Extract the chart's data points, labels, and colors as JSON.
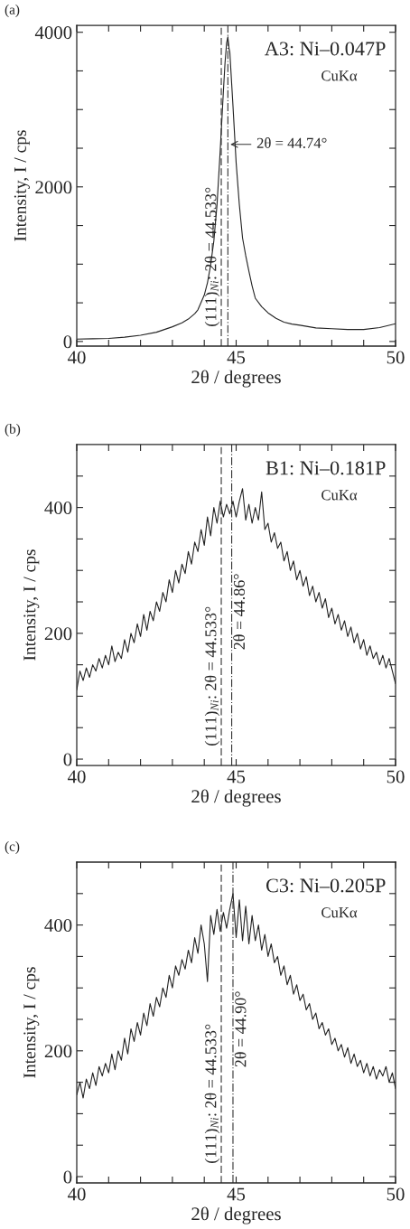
{
  "chart_data": [
    {
      "type": "line",
      "title": "(a)",
      "subtitle": "A3: Ni–0.047P",
      "annotations": [
        "CuKα",
        {
          "text": "2θ = 44.74°",
          "x": 44.74,
          "y": 2550
        }
      ],
      "xlabel": "2θ / degrees",
      "ylabel": "Intensity, I / cps",
      "xlim": [
        40,
        50
      ],
      "ylim": [
        -60,
        4090
      ],
      "xticks": [
        40,
        {
          "value": 41,
          "label": null
        },
        {
          "value": 42,
          "label": null
        },
        {
          "value": 43,
          "label": null
        },
        {
          "value": 44,
          "label": null
        },
        45,
        {
          "value": 46,
          "label": null
        },
        {
          "value": 47,
          "label": null
        },
        {
          "value": 48,
          "label": null
        },
        {
          "value": 49,
          "label": null
        },
        50
      ],
      "yticks": [
        0,
        {
          "value": 500,
          "label": null
        },
        {
          "value": 1000,
          "label": null
        },
        {
          "value": 1500,
          "label": null
        },
        2000,
        {
          "value": 2500,
          "label": null
        },
        {
          "value": 3000,
          "label": null
        },
        {
          "value": 3500,
          "label": null
        },
        4000
      ],
      "ref_lines": [
        {
          "axis": "x",
          "value": 44.533,
          "label": "(111)$_{Ni}$: 2θ = 44.533°",
          "line_style": "dashed"
        },
        {
          "axis": "x",
          "value": 44.74,
          "line_style": "dashdot"
        }
      ],
      "series": [
        {
          "color": "#222222",
          "x": [
            40,
            40.5,
            41,
            41.5,
            42,
            42.5,
            43,
            43.3,
            43.5,
            43.7,
            43.8,
            44,
            44.1,
            44.2,
            44.3,
            44.4,
            44.5,
            44.6,
            44.65,
            44.7,
            44.74,
            44.78,
            44.8,
            44.9,
            45,
            45.1,
            45.2,
            45.3,
            45.4,
            45.5,
            45.6,
            45.8,
            46,
            46.25,
            46.5,
            46.75,
            47,
            47.5,
            48,
            48.5,
            49,
            49.5,
            50
          ],
          "values": [
            30,
            35,
            40,
            55,
            80,
            120,
            190,
            240,
            290,
            360,
            410,
            600,
            760,
            990,
            1300,
            1770,
            2470,
            3240,
            3600,
            3860,
            3940,
            3780,
            3750,
            3050,
            2310,
            1770,
            1340,
            1110,
            910,
            720,
            560,
            450,
            370,
            300,
            250,
            225,
            210,
            175,
            165,
            155,
            155,
            180,
            230
          ]
        }
      ]
    },
    {
      "type": "line",
      "title": "(b)",
      "subtitle": "B1: Ni–0.181P",
      "annotations": [
        "CuKα"
      ],
      "xlabel": "2θ / degrees",
      "ylabel": "Intensity, I / cps",
      "xlim": [
        40,
        50
      ],
      "ylim": [
        -10,
        500
      ],
      "xticks": [
        40,
        {
          "value": 41,
          "label": null
        },
        {
          "value": 42,
          "label": null
        },
        {
          "value": 43,
          "label": null
        },
        {
          "value": 44,
          "label": null
        },
        45,
        {
          "value": 46,
          "label": null
        },
        {
          "value": 47,
          "label": null
        },
        {
          "value": 48,
          "label": null
        },
        {
          "value": 49,
          "label": null
        },
        50
      ],
      "yticks": [
        0,
        {
          "value": 50,
          "label": null
        },
        {
          "value": 100,
          "label": null
        },
        {
          "value": 150,
          "label": null
        },
        200,
        {
          "value": 250,
          "label": null
        },
        {
          "value": 300,
          "label": null
        },
        {
          "value": 350,
          "label": null
        },
        400,
        {
          "value": 450,
          "label": null
        }
      ],
      "ref_lines": [
        {
          "axis": "x",
          "value": 44.533,
          "label": "(111)$_{Ni}$: 2θ = 44.533°",
          "line_style": "dashed"
        },
        {
          "axis": "x",
          "value": 44.86,
          "label": "2θ = 44.86°",
          "line_style": "dashdot"
        }
      ],
      "series": [
        {
          "color": "#222222",
          "x": [
            40.0,
            40.1,
            40.2,
            40.3,
            40.4,
            40.5,
            40.6,
            40.7,
            40.8,
            40.9,
            41.0,
            41.1,
            41.2,
            41.3,
            41.4,
            41.5,
            41.6,
            41.7,
            41.8,
            41.9,
            42.0,
            42.1,
            42.2,
            42.3,
            42.4,
            42.5,
            42.6,
            42.7,
            42.8,
            42.9,
            43.0,
            43.1,
            43.2,
            43.3,
            43.4,
            43.5,
            43.6,
            43.7,
            43.8,
            43.9,
            44.0,
            44.1,
            44.2,
            44.3,
            44.4,
            44.5,
            44.6,
            44.7,
            44.8,
            44.9,
            45.0,
            45.1,
            45.2,
            45.3,
            45.4,
            45.5,
            45.6,
            45.7,
            45.8,
            45.9,
            46.0,
            46.1,
            46.2,
            46.3,
            46.4,
            46.5,
            46.6,
            46.7,
            46.8,
            46.9,
            47.0,
            47.1,
            47.2,
            47.3,
            47.4,
            47.5,
            47.6,
            47.7,
            47.8,
            47.9,
            48.0,
            48.1,
            48.2,
            48.3,
            48.4,
            48.5,
            48.6,
            48.7,
            48.8,
            48.9,
            49.0,
            49.1,
            49.2,
            49.3,
            49.4,
            49.5,
            49.6,
            49.7,
            49.8,
            49.9,
            50.0
          ],
          "values": [
            110,
            140,
            125,
            145,
            130,
            150,
            140,
            160,
            145,
            165,
            150,
            180,
            155,
            170,
            160,
            190,
            170,
            200,
            185,
            215,
            195,
            230,
            205,
            235,
            220,
            250,
            235,
            265,
            250,
            285,
            265,
            300,
            280,
            310,
            295,
            330,
            310,
            345,
            330,
            365,
            340,
            385,
            355,
            400,
            375,
            410,
            385,
            405,
            390,
            410,
            385,
            410,
            430,
            380,
            405,
            375,
            400,
            380,
            425,
            365,
            375,
            345,
            360,
            335,
            345,
            315,
            330,
            300,
            315,
            285,
            300,
            275,
            290,
            260,
            275,
            250,
            265,
            240,
            255,
            225,
            240,
            215,
            230,
            205,
            220,
            195,
            210,
            185,
            200,
            175,
            190,
            165,
            180,
            160,
            170,
            150,
            165,
            145,
            160,
            140,
            120
          ]
        }
      ]
    },
    {
      "type": "line",
      "title": "(c)",
      "subtitle": "C3: Ni–0.205P",
      "annotations": [
        "CuKα"
      ],
      "xlabel": "2θ / degrees",
      "ylabel": "Intensity, I / cps",
      "xlim": [
        40,
        50
      ],
      "ylim": [
        -10,
        500
      ],
      "xticks": [
        40,
        {
          "value": 41,
          "label": null
        },
        {
          "value": 42,
          "label": null
        },
        {
          "value": 43,
          "label": null
        },
        {
          "value": 44,
          "label": null
        },
        45,
        {
          "value": 46,
          "label": null
        },
        {
          "value": 47,
          "label": null
        },
        {
          "value": 48,
          "label": null
        },
        {
          "value": 49,
          "label": null
        },
        50
      ],
      "yticks": [
        0,
        {
          "value": 50,
          "label": null
        },
        {
          "value": 100,
          "label": null
        },
        {
          "value": 150,
          "label": null
        },
        200,
        {
          "value": 250,
          "label": null
        },
        {
          "value": 300,
          "label": null
        },
        {
          "value": 350,
          "label": null
        },
        400,
        {
          "value": 450,
          "label": null
        }
      ],
      "ref_lines": [
        {
          "axis": "x",
          "value": 44.533,
          "label": "(111)$_{Ni}$: 2θ = 44.533°",
          "line_style": "dashed"
        },
        {
          "axis": "x",
          "value": 44.9,
          "label": "2θ = 44.90°",
          "line_style": "dashdot"
        }
      ],
      "series": [
        {
          "color": "#222222",
          "x": [
            40.0,
            40.1,
            40.2,
            40.3,
            40.4,
            40.5,
            40.6,
            40.7,
            40.8,
            40.9,
            41.0,
            41.1,
            41.2,
            41.3,
            41.4,
            41.5,
            41.6,
            41.7,
            41.8,
            41.9,
            42.0,
            42.1,
            42.2,
            42.3,
            42.4,
            42.5,
            42.6,
            42.7,
            42.8,
            42.9,
            43.0,
            43.1,
            43.2,
            43.3,
            43.4,
            43.5,
            43.6,
            43.7,
            43.8,
            43.9,
            44.0,
            44.1,
            44.2,
            44.3,
            44.4,
            44.5,
            44.6,
            44.7,
            44.8,
            44.9,
            45.0,
            45.1,
            45.2,
            45.3,
            45.4,
            45.5,
            45.6,
            45.7,
            45.8,
            45.9,
            46.0,
            46.1,
            46.2,
            46.3,
            46.4,
            46.5,
            46.6,
            46.7,
            46.8,
            46.9,
            47.0,
            47.1,
            47.2,
            47.3,
            47.4,
            47.5,
            47.6,
            47.7,
            47.8,
            47.9,
            48.0,
            48.1,
            48.2,
            48.3,
            48.4,
            48.5,
            48.6,
            48.7,
            48.8,
            48.9,
            49.0,
            49.1,
            49.2,
            49.3,
            49.4,
            49.5,
            49.6,
            49.7,
            49.8,
            49.9,
            50.0
          ],
          "values": [
            130,
            150,
            125,
            155,
            140,
            165,
            145,
            175,
            160,
            180,
            165,
            195,
            170,
            200,
            185,
            220,
            195,
            235,
            215,
            245,
            225,
            260,
            240,
            275,
            255,
            285,
            270,
            300,
            285,
            320,
            300,
            335,
            320,
            345,
            330,
            360,
            340,
            380,
            355,
            400,
            370,
            310,
            415,
            385,
            425,
            390,
            420,
            395,
            425,
            450,
            380,
            440,
            375,
            430,
            370,
            415,
            375,
            400,
            360,
            385,
            350,
            370,
            340,
            350,
            320,
            335,
            305,
            320,
            290,
            305,
            280,
            290,
            265,
            275,
            250,
            260,
            235,
            245,
            225,
            235,
            210,
            220,
            200,
            210,
            190,
            205,
            180,
            195,
            175,
            185,
            165,
            180,
            160,
            175,
            155,
            170,
            160,
            175,
            150,
            165,
            140
          ]
        }
      ]
    }
  ]
}
